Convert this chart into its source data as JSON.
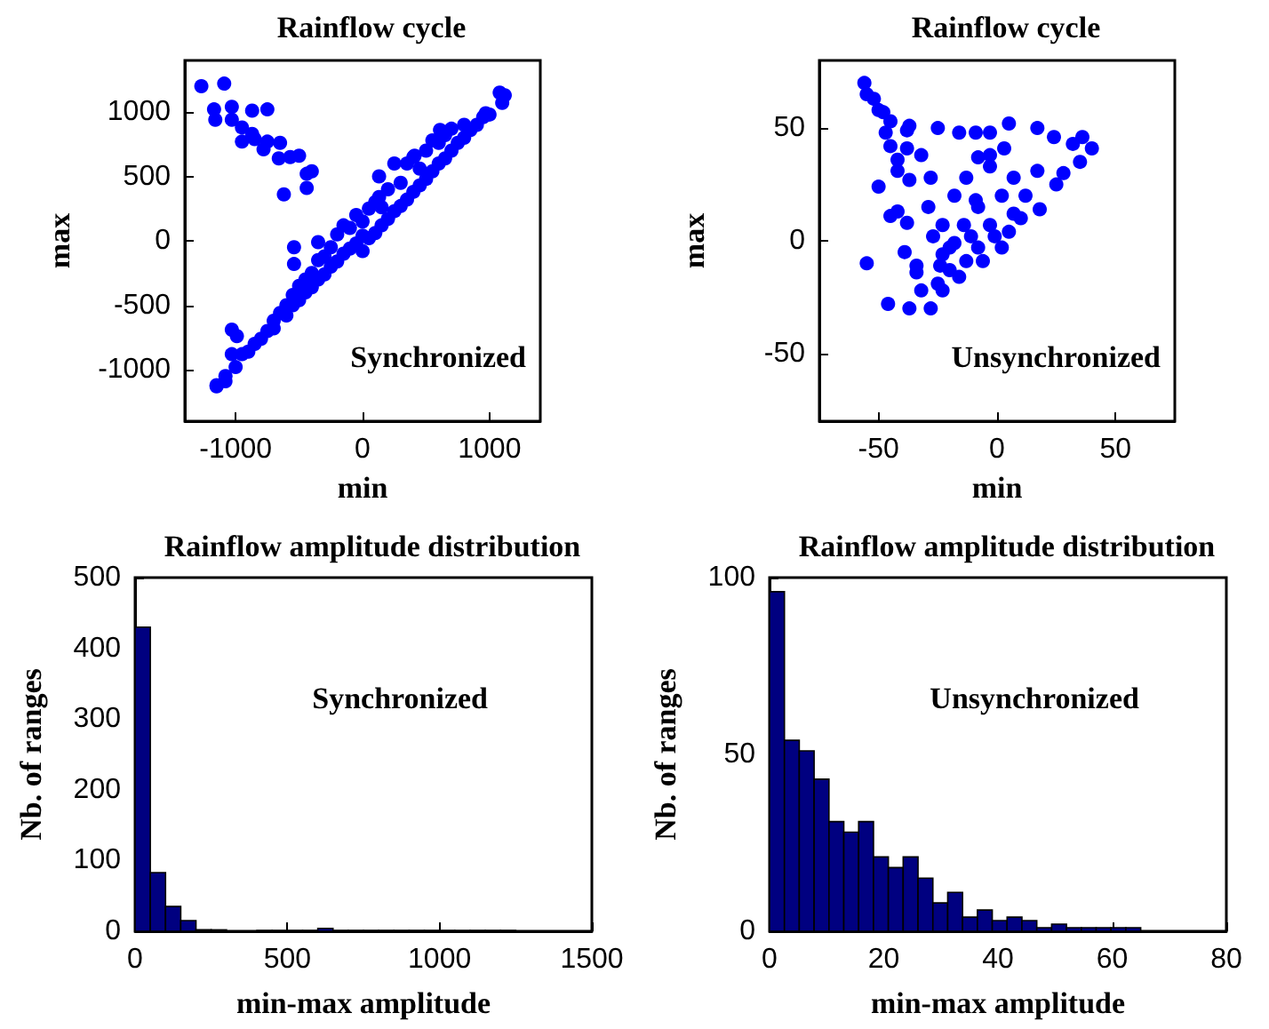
{
  "chart_data": [
    {
      "type": "scatter",
      "title": "Rainflow cycle",
      "xlabel": "min",
      "ylabel": "max",
      "annotations": [
        "Synchronized"
      ],
      "xlim": [
        -1400,
        1400
      ],
      "ylim": [
        -1400,
        1400
      ],
      "xticks": [
        -1000,
        0,
        1000
      ],
      "yticks": [
        -1000,
        -500,
        0,
        500,
        1000
      ],
      "grid": false,
      "marker": "circle",
      "series": [
        {
          "color": "#0000ff",
          "x": [
            -1270,
            -1090,
            -1170,
            -1160,
            -1030,
            -1030,
            -870,
            -950,
            -950,
            -870,
            -850,
            -780,
            -750,
            -750,
            -650,
            -660,
            -620,
            -570,
            -500,
            -440,
            -400,
            -440,
            -540,
            -540,
            -350,
            -1030,
            -990,
            -1030,
            -1150,
            -1080,
            130,
            130,
            410,
            610,
            970,
            -1150,
            -1080,
            -1000,
            -950,
            -900,
            -850,
            -800,
            -750,
            -700,
            -700,
            -650,
            -600,
            -600,
            -550,
            -550,
            -500,
            -500,
            -450,
            -450,
            -400,
            -400,
            -350,
            -350,
            -300,
            -300,
            -250,
            -250,
            -200,
            -200,
            -150,
            -150,
            -100,
            -100,
            -50,
            -50,
            0,
            0,
            0,
            50,
            50,
            100,
            100,
            150,
            150,
            200,
            200,
            250,
            250,
            300,
            300,
            350,
            350,
            400,
            400,
            450,
            450,
            500,
            500,
            550,
            550,
            600,
            600,
            650,
            650,
            700,
            700,
            750,
            800,
            800,
            850,
            900,
            950,
            1000,
            1100,
            1120,
            1080
          ],
          "values": [
            1200,
            1220,
            1020,
            940,
            1040,
            940,
            1010,
            880,
            770,
            830,
            790,
            710,
            770,
            1020,
            760,
            640,
            360,
            650,
            660,
            410,
            540,
            520,
            -50,
            -180,
            -10,
            -690,
            -740,
            -880,
            -1130,
            -1090,
            340,
            500,
            660,
            860,
            990,
            -1120,
            -1050,
            -980,
            -880,
            -860,
            -800,
            -760,
            -700,
            -620,
            -680,
            -560,
            -580,
            -500,
            -500,
            -420,
            -460,
            -350,
            -400,
            -300,
            -360,
            -250,
            -300,
            -150,
            -260,
            -120,
            -200,
            -50,
            -160,
            50,
            -100,
            120,
            -60,
            100,
            -20,
            200,
            -80,
            40,
            150,
            20,
            250,
            60,
            300,
            120,
            260,
            170,
            400,
            230,
            600,
            270,
            450,
            320,
            600,
            380,
            650,
            430,
            560,
            480,
            700,
            540,
            780,
            600,
            760,
            640,
            820,
            700,
            870,
            760,
            800,
            900,
            860,
            900,
            960,
            980,
            1070,
            1130,
            1150
          ]
        }
      ]
    },
    {
      "type": "scatter",
      "title": "Rainflow cycle",
      "xlabel": "min",
      "ylabel": "max",
      "annotations": [
        "Unsynchronized"
      ],
      "xlim": [
        -75,
        75
      ],
      "ylim": [
        -80,
        80
      ],
      "xticks": [
        -50,
        0,
        50
      ],
      "yticks": [
        -50,
        0,
        50
      ],
      "grid": false,
      "marker": "circle",
      "series": [
        {
          "color": "#0000ff",
          "x": [
            -56,
            -55,
            -52,
            -50,
            -48,
            -45,
            -47,
            -45,
            -42,
            -42,
            -38,
            -37,
            -38,
            -37,
            -50,
            -42,
            -45,
            -38,
            -55,
            -46,
            -37,
            -28,
            -32,
            -34,
            -34,
            -39,
            -25,
            -16,
            -9,
            -3,
            5,
            17,
            24,
            32,
            36,
            40,
            35,
            28,
            25,
            18,
            3,
            -8,
            2,
            -6,
            -16,
            -23,
            -25,
            -20,
            -27,
            -29,
            -32,
            -28,
            -18,
            -13,
            -8,
            -3,
            2,
            7,
            12,
            10,
            -1,
            -11,
            -18,
            -23,
            -13,
            -3,
            17,
            -23,
            -9,
            -3,
            7,
            -14,
            -24,
            -20,
            5,
            -8
          ],
          "values": [
            70,
            65,
            63,
            58,
            57,
            53,
            48,
            42,
            36,
            31,
            49,
            51,
            41,
            27,
            24,
            13,
            11,
            8,
            -10,
            -28,
            -30,
            -30,
            -22,
            -14,
            -11,
            -5,
            50,
            48,
            48,
            48,
            52,
            50,
            46,
            43,
            46,
            41,
            35,
            30,
            25,
            14,
            41,
            37,
            -3,
            -9,
            -16,
            -22,
            -19,
            -13,
            2,
            15,
            38,
            28,
            20,
            28,
            15,
            7,
            20,
            28,
            20,
            10,
            2,
            2,
            -1,
            7,
            -9,
            33,
            31,
            -6,
            18,
            38,
            12,
            7,
            -11,
            -3,
            4,
            -3
          ]
        }
      ]
    },
    {
      "type": "histogram",
      "title": "Rainflow amplitude distribution",
      "xlabel": "min-max amplitude",
      "ylabel": "Nb. of ranges",
      "annotations": [
        "Synchronized"
      ],
      "xlim": [
        0,
        1500
      ],
      "ylim": [
        0,
        500
      ],
      "xticks": [
        0,
        500,
        1000,
        1500
      ],
      "yticks": [
        0,
        100,
        200,
        300,
        400,
        500
      ],
      "grid": false,
      "color": "#000080",
      "bins": [
        0,
        50,
        100,
        150,
        200,
        250,
        300,
        350,
        400,
        450,
        500,
        550,
        600,
        650,
        700,
        750,
        800,
        850,
        900,
        950,
        1000,
        1050,
        1100,
        1150,
        1200,
        1250
      ],
      "values": [
        430,
        83,
        35,
        15,
        2,
        2,
        0,
        0,
        1,
        1,
        1,
        1,
        4,
        1,
        1,
        1,
        1,
        1,
        1,
        1,
        1,
        1,
        1,
        1,
        1
      ]
    },
    {
      "type": "histogram",
      "title": "Rainflow amplitude distribution",
      "xlabel": "min-max amplitude",
      "ylabel": "Nb. of ranges",
      "annotations": [
        "Unsynchronized"
      ],
      "xlim": [
        0,
        80
      ],
      "ylim": [
        0,
        100
      ],
      "xticks": [
        0,
        20,
        40,
        60,
        80
      ],
      "yticks": [
        0,
        50,
        100
      ],
      "grid": false,
      "color": "#000080",
      "bins": [
        0,
        2.6,
        5.2,
        7.8,
        10.4,
        13,
        15.6,
        18.2,
        20.8,
        23.4,
        26,
        28.6,
        31.2,
        33.8,
        36.4,
        39,
        41.6,
        44.2,
        46.8,
        49.4,
        52,
        54.6,
        57.2,
        59.8,
        62.4,
        65
      ],
      "values": [
        96,
        54,
        51,
        43,
        31,
        28,
        31,
        21,
        18,
        21,
        15,
        8,
        11,
        4,
        6,
        3,
        4,
        3,
        1,
        2,
        1,
        1,
        1,
        1,
        1
      ]
    }
  ]
}
